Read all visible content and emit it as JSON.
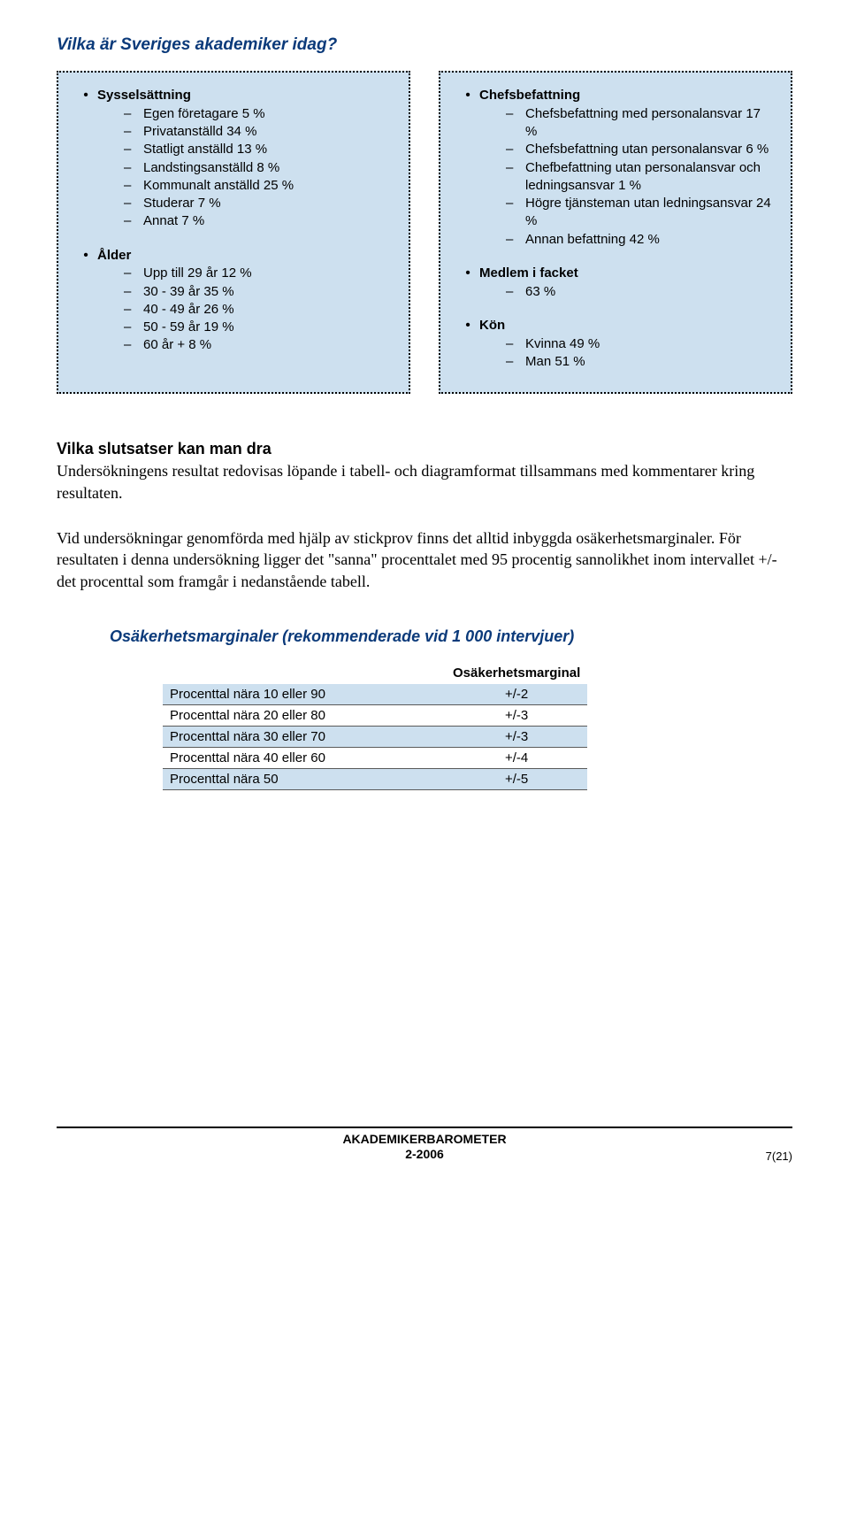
{
  "title": "Vilka är Sveriges akademiker idag?",
  "colors": {
    "heading": "#0b3a7a",
    "box_bg": "#cde0ef",
    "text": "#000000",
    "table_border": "#5a5a5a",
    "page_bg": "#ffffff"
  },
  "left_box": {
    "groups": [
      {
        "label": "Sysselsättning",
        "items": [
          "Egen företagare 5 %",
          "Privatanställd 34 %",
          "Statligt anställd 13 %",
          "Landstingsanställd 8 %",
          "Kommunalt anställd 25 %",
          "Studerar 7 %",
          "Annat 7 %"
        ]
      },
      {
        "label": "Ålder",
        "items": [
          "Upp till 29 år 12 %",
          "30 - 39 år 35 %",
          "40 - 49 år 26 %",
          "50 - 59 år 19 %",
          "60 år + 8 %"
        ]
      }
    ]
  },
  "right_box": {
    "groups": [
      {
        "label": "Chefsbefattning",
        "items": [
          "Chefsbefattning med personalansvar 17 %",
          "Chefsbefattning utan personalansvar 6 %",
          "Chefbefattning utan personalansvar och ledningsansvar 1 %",
          "Högre tjänsteman utan ledningsansvar 24 %",
          "Annan befattning 42 %"
        ]
      },
      {
        "label": "Medlem i facket",
        "items": [
          "63 %"
        ]
      },
      {
        "label": "Kön",
        "items": [
          "Kvinna 49 %",
          "Man 51 %"
        ]
      }
    ]
  },
  "conclusions": {
    "heading": "Vilka slutsatser kan man dra",
    "p1": "Undersökningens resultat redovisas löpande i tabell- och diagramformat tillsammans med kommentarer kring resultaten.",
    "p2": "Vid undersökningar genomförda med hjälp av stickprov finns det alltid inbyggda osäkerhetsmarginaler. För resultaten i denna undersökning ligger det \"sanna\" procenttalet med 95 procentig sannolikhet inom intervallet +/- det procenttal som framgår i nedanstående tabell."
  },
  "margins": {
    "title": "Osäkerhetsmarginaler (rekommenderade vid 1 000 intervjuer)",
    "col_header": "Osäkerhetsmarginal",
    "rows": [
      {
        "label": "Procenttal nära 10 eller 90",
        "value": "+/-2",
        "shaded": true
      },
      {
        "label": "Procenttal nära 20 eller 80",
        "value": "+/-3",
        "shaded": false
      },
      {
        "label": "Procenttal nära 30 eller 70",
        "value": "+/-3",
        "shaded": true
      },
      {
        "label": "Procenttal nära 40 eller 60",
        "value": "+/-4",
        "shaded": false
      },
      {
        "label": "Procenttal nära 50",
        "value": "+/-5",
        "shaded": true
      }
    ]
  },
  "footer": {
    "line1": "AKADEMIKERBAROMETER",
    "line2": "2-2006",
    "page": "7(21)"
  }
}
